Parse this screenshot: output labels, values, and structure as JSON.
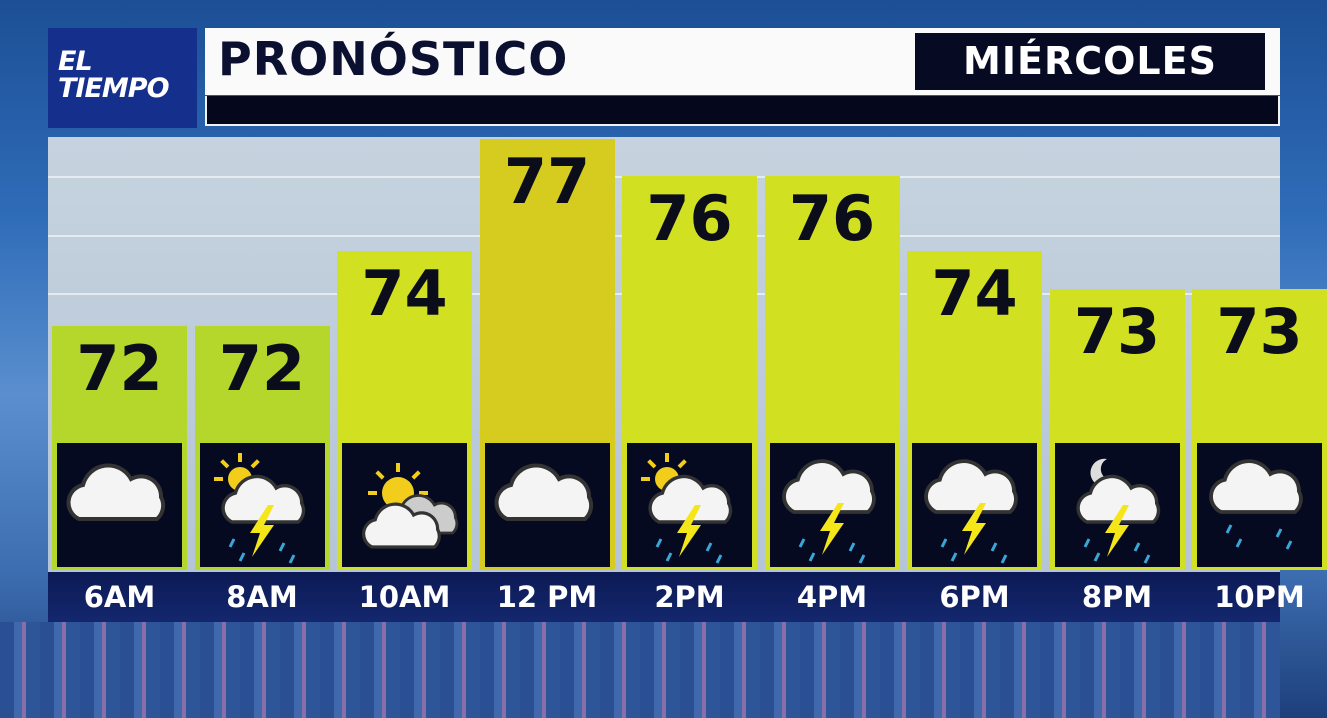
{
  "logo": {
    "line1": "EL",
    "line2": "TIEMPO"
  },
  "header": {
    "title": "PRONÓSTICO",
    "day": "MIÉRCOLES"
  },
  "colors": {
    "logo_bg": "#142f8c",
    "bar_72": "#b5d62a",
    "bar_high": "#d6cc20",
    "bar_default": "#d2e022",
    "icon_bg": "#050a20",
    "label_bg": "#0c1a55"
  },
  "chart_data": {
    "type": "bar",
    "categories": [
      "6AM",
      "8AM",
      "10AM",
      "12 PM",
      "2PM",
      "4PM",
      "6PM",
      "8PM",
      "10PM"
    ],
    "values": [
      72,
      72,
      74,
      77,
      76,
      76,
      74,
      73,
      73
    ],
    "icons": [
      "cloudy",
      "partly-sunny-thunderstorm",
      "partly-sunny",
      "cloudy",
      "partly-sunny-thunderstorm",
      "thunderstorm",
      "thunderstorm",
      "night-thunderstorm",
      "rain"
    ],
    "title": "",
    "xlabel": "",
    "ylabel": "",
    "grid": true
  }
}
